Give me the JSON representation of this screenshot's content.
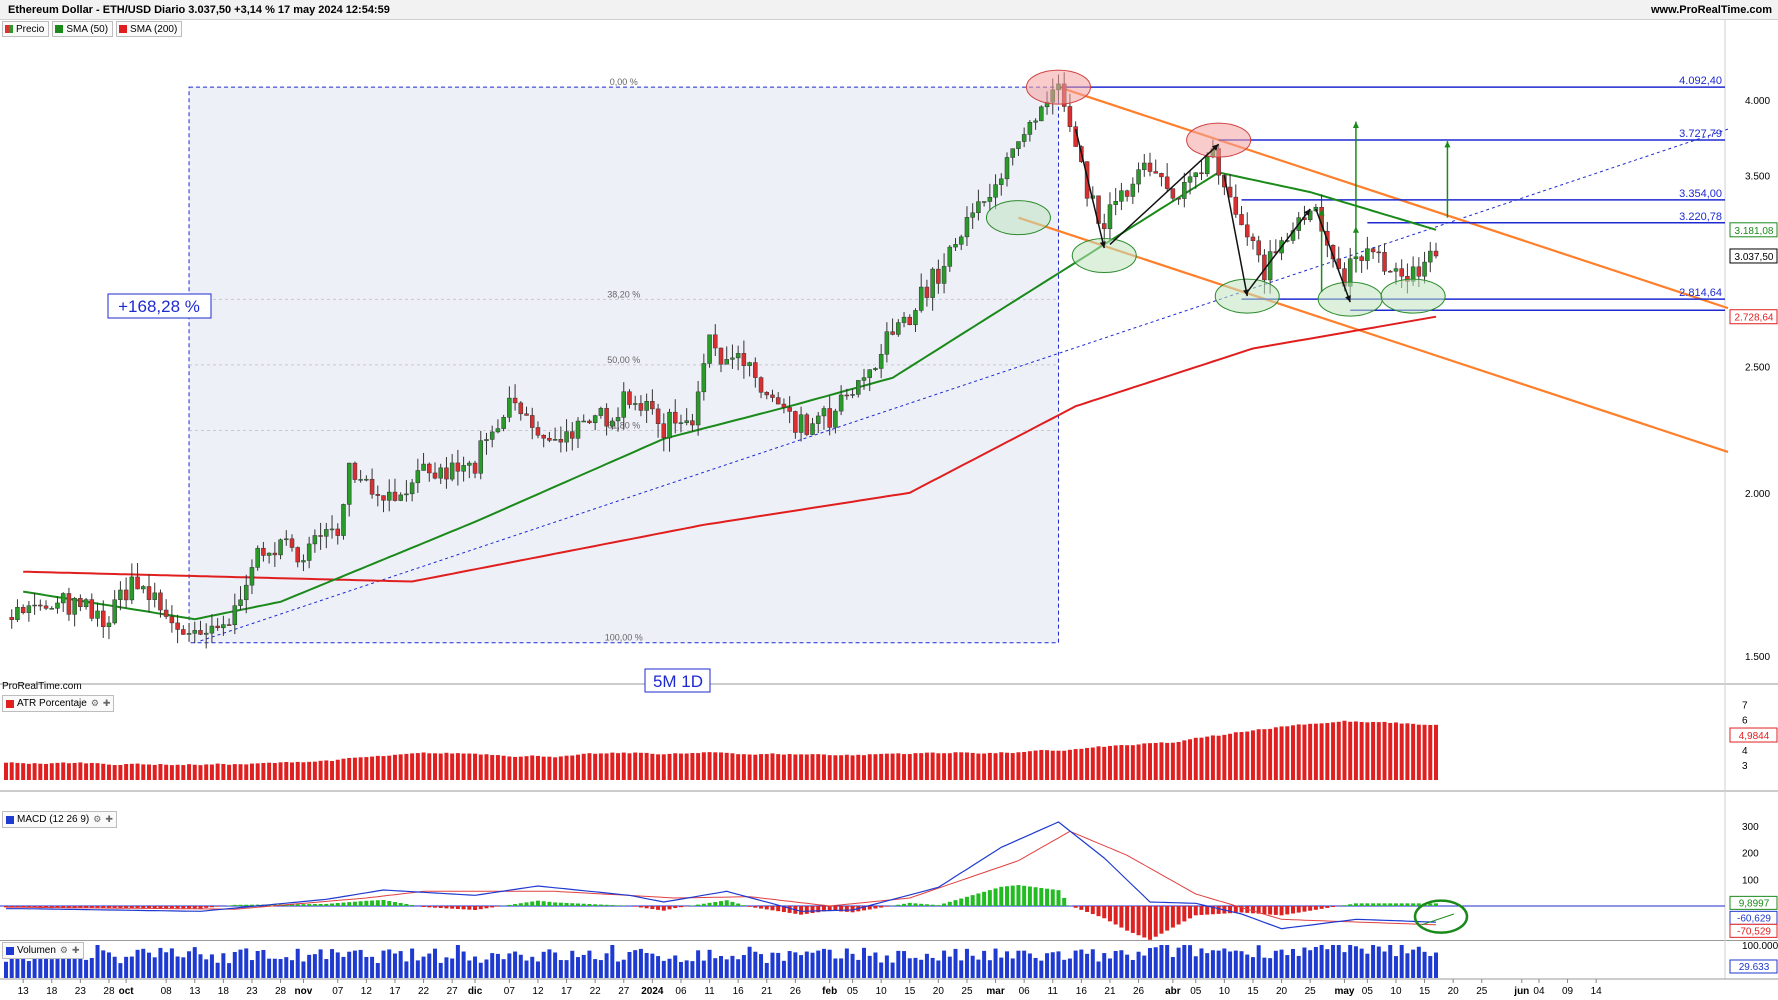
{
  "header": {
    "title": "Ethereum Dollar - ETH/USD Diario 3.037,50 +3,14 % 17 may 2024 12:54:59",
    "site": "www.ProRealTime.com"
  },
  "brand": "ProRealTime.com",
  "legend": [
    {
      "label": "Precio",
      "color": "#d33",
      "icon": "price-bar-icon"
    },
    {
      "label": "SMA (50)",
      "color": "#1a8a1a"
    },
    {
      "label": "SMA (200)",
      "color": "#e01e1e"
    }
  ],
  "panels": {
    "atr": {
      "label": "ATR Porcentaje",
      "color": "#e02020",
      "icon": "wrench-icon",
      "axis": [
        "7",
        "6",
        "5",
        "4",
        "3"
      ],
      "last": "4,9844"
    },
    "macd": {
      "label": "MACD (12 26 9)",
      "color": "#1e3ad0",
      "icon": "wrench-icon",
      "axis": [
        "300",
        "200",
        "100"
      ],
      "last_hist": "9,8997",
      "last_macd": "-60,629",
      "last_signal": "-70,529"
    },
    "volume": {
      "label": "Volumen",
      "color": "#1e3ad0",
      "icon": "wrench-icon",
      "axis": [
        "100.000"
      ],
      "last": "29.633"
    }
  },
  "colors": {
    "up": "#2a9a2a",
    "down": "#d83030",
    "sma50": "#1a8a1a",
    "sma200": "#e01e1e",
    "channel": "#ff7f2a",
    "level": "#1e2ad0",
    "fib": "#1e2ad0"
  },
  "chart_data": {
    "type": "candlestick",
    "title": "Ethereum Dollar - ETH/USD Diario",
    "y_scale": "log",
    "ylim": [
      1450,
      4400
    ],
    "y_ticks": [
      "4.000",
      "3.500",
      "2.500",
      "2.000",
      "1.500"
    ],
    "x_labels": [
      "13",
      "18",
      "23",
      "28",
      "oct",
      "08",
      "13",
      "18",
      "23",
      "28",
      "nov",
      "07",
      "12",
      "17",
      "22",
      "27",
      "dic",
      "07",
      "12",
      "17",
      "22",
      "27",
      "2024",
      "06",
      "11",
      "16",
      "21",
      "26",
      "feb",
      "05",
      "10",
      "15",
      "20",
      "25",
      "mar",
      "06",
      "11",
      "16",
      "21",
      "26",
      "abr",
      "05",
      "10",
      "15",
      "20",
      "25",
      "may",
      "05",
      "10",
      "15",
      "20",
      "25",
      "jun",
      "04",
      "09",
      "14"
    ],
    "price_path": [
      [
        "2023-09-13",
        1620
      ],
      [
        "2023-09-20",
        1640
      ],
      [
        "2023-09-28",
        1600
      ],
      [
        "2023-10-02",
        1720
      ],
      [
        "2023-10-08",
        1620
      ],
      [
        "2023-10-12",
        1540
      ],
      [
        "2023-10-16",
        1560
      ],
      [
        "2023-10-20",
        1610
      ],
      [
        "2023-10-23",
        1790
      ],
      [
        "2023-10-31",
        1810
      ],
      [
        "2023-11-07",
        1880
      ],
      [
        "2023-11-09",
        2080
      ],
      [
        "2023-11-16",
        1980
      ],
      [
        "2023-11-22",
        2050
      ],
      [
        "2023-12-01",
        2100
      ],
      [
        "2023-12-08",
        2360
      ],
      [
        "2023-12-12",
        2200
      ],
      [
        "2023-12-20",
        2230
      ],
      [
        "2023-12-28",
        2380
      ],
      [
        "2024-01-03",
        2250
      ],
      [
        "2024-01-08",
        2300
      ],
      [
        "2024-01-11",
        2620
      ],
      [
        "2024-01-16",
        2520
      ],
      [
        "2024-01-22",
        2350
      ],
      [
        "2024-01-26",
        2230
      ],
      [
        "2024-02-01",
        2280
      ],
      [
        "2024-02-07",
        2430
      ],
      [
        "2024-02-12",
        2650
      ],
      [
        "2024-02-20",
        2950
      ],
      [
        "2024-02-26",
        3250
      ],
      [
        "2024-03-04",
        3650
      ],
      [
        "2024-03-12",
        4050
      ],
      [
        "2024-03-15",
        3700
      ],
      [
        "2024-03-19",
        3180
      ],
      [
        "2024-03-22",
        3400
      ],
      [
        "2024-03-27",
        3550
      ],
      [
        "2024-04-01",
        3350
      ],
      [
        "2024-04-08",
        3700
      ],
      [
        "2024-04-12",
        3250
      ],
      [
        "2024-04-17",
        2980
      ],
      [
        "2024-04-22",
        3180
      ],
      [
        "2024-04-26",
        3250
      ],
      [
        "2024-05-01",
        2850
      ],
      [
        "2024-05-03",
        3100
      ],
      [
        "2024-05-07",
        3000
      ],
      [
        "2024-05-12",
        2920
      ],
      [
        "2024-05-17",
        3037.5
      ]
    ],
    "sma50": [
      [
        "2023-09-13",
        1680
      ],
      [
        "2023-10-13",
        1600
      ],
      [
        "2023-10-28",
        1650
      ],
      [
        "2023-12-01",
        1900
      ],
      [
        "2024-01-03",
        2200
      ],
      [
        "2024-01-25",
        2330
      ],
      [
        "2024-02-12",
        2450
      ],
      [
        "2024-03-04",
        2800
      ],
      [
        "2024-03-20",
        3100
      ],
      [
        "2024-04-09",
        3520
      ],
      [
        "2024-04-25",
        3400
      ],
      [
        "2024-05-17",
        3181.08
      ]
    ],
    "sma200": [
      [
        "2023-09-13",
        1740
      ],
      [
        "2023-11-20",
        1710
      ],
      [
        "2024-01-10",
        1890
      ],
      [
        "2024-02-15",
        2000
      ],
      [
        "2024-03-15",
        2330
      ],
      [
        "2024-04-15",
        2580
      ],
      [
        "2024-05-17",
        2728.64
      ]
    ],
    "levels": [
      {
        "label": "4.092,40",
        "value": 4092.4
      },
      {
        "label": "3.727,79",
        "value": 3727.79
      },
      {
        "label": "3.354,00",
        "value": 3354.0
      },
      {
        "label": "3.220,78",
        "value": 3220.78
      },
      {
        "label": "2.814,64",
        "value": 2814.64
      }
    ],
    "badges": [
      {
        "label": "3.181,08",
        "value": 3181.08,
        "color": "#1a8a1a"
      },
      {
        "label": "3.037,50",
        "value": 3037.5,
        "color": "#000000"
      },
      {
        "label": "2.728,64",
        "value": 2728.64,
        "color": "#e01e1e"
      }
    ],
    "fibonacci": [
      "0,00 %",
      "38,20 %",
      "50,00 %",
      "61,80 %",
      "100,00 %"
    ],
    "annotations": {
      "gain": "+168,28 %",
      "range": "5M 1D"
    }
  }
}
